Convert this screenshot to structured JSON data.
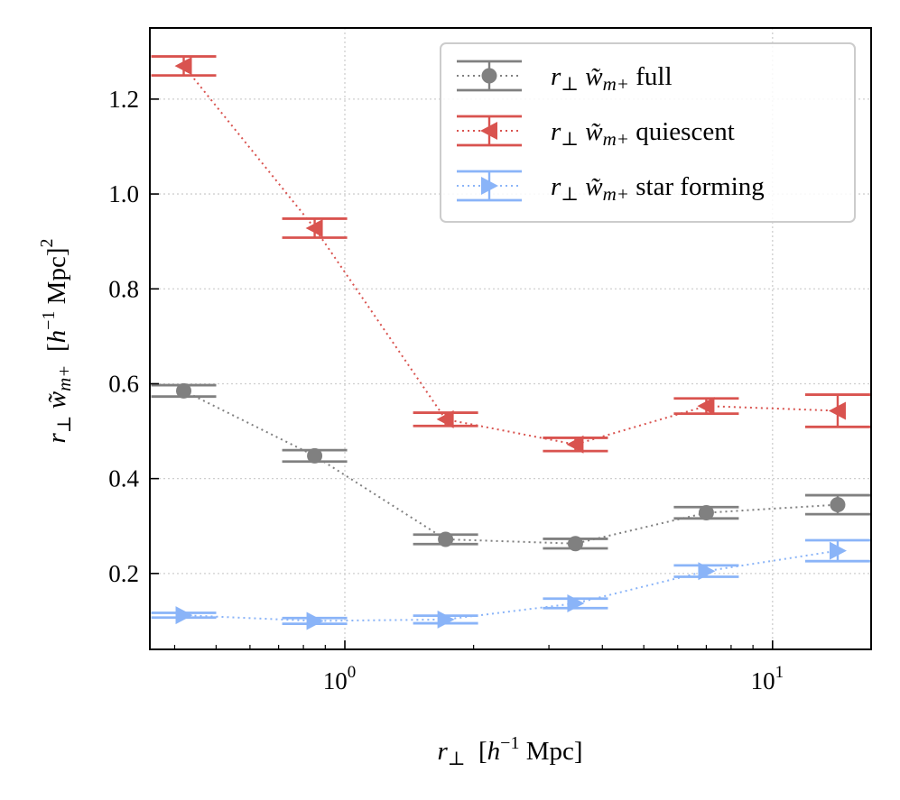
{
  "chart_data": {
    "type": "scatter",
    "xscale": "log",
    "xlim": [
      0.35,
      17
    ],
    "ylim": [
      0.04,
      1.35
    ],
    "grid": true,
    "xlabel": {
      "main": "r",
      "sub": "⊥",
      "unit_open": "[",
      "unit_h": "h",
      "unit_exp": "−1",
      "unit_rest": " Mpc]"
    },
    "ylabel": {
      "main": "r",
      "sub": "⊥",
      "w": "w̃",
      "wsub": "m+",
      "unit_open": "[",
      "unit_h": "h",
      "unit_exp": "−1",
      "unit_rest": " Mpc]",
      "unit_sq": "2"
    },
    "xticks": [
      {
        "value": 1,
        "base": "10",
        "exp": "0"
      },
      {
        "value": 10,
        "base": "10",
        "exp": "1"
      }
    ],
    "yticks": [
      {
        "value": 0.2,
        "label": "0.2"
      },
      {
        "value": 0.4,
        "label": "0.4"
      },
      {
        "value": 0.6,
        "label": "0.6"
      },
      {
        "value": 0.8,
        "label": "0.8"
      },
      {
        "value": 1.0,
        "label": "1.0"
      },
      {
        "value": 1.2,
        "label": "1.2"
      }
    ],
    "legend": {
      "position": "top-right"
    },
    "series": [
      {
        "name": "full",
        "label_main": "r",
        "label_sub": "⊥",
        "label_w": "w̃",
        "label_wsub": "m+",
        "label_text": " full",
        "color": "#808080",
        "marker": "circle",
        "x": [
          0.42,
          0.85,
          1.72,
          3.46,
          7.0,
          14.2
        ],
        "y": [
          0.585,
          0.448,
          0.272,
          0.263,
          0.328,
          0.345
        ],
        "yerr": [
          0.012,
          0.012,
          0.01,
          0.01,
          0.012,
          0.02
        ]
      },
      {
        "name": "quiescent",
        "label_main": "r",
        "label_sub": "⊥",
        "label_w": "w̃",
        "label_wsub": "m+",
        "label_text": " quiescent",
        "color": "#d9534f",
        "marker": "triangle-left",
        "x": [
          0.42,
          0.85,
          1.72,
          3.46,
          7.0,
          14.2
        ],
        "y": [
          1.27,
          0.928,
          0.525,
          0.472,
          0.553,
          0.543
        ],
        "yerr": [
          0.02,
          0.02,
          0.014,
          0.014,
          0.016,
          0.034
        ]
      },
      {
        "name": "star forming",
        "label_main": "r",
        "label_sub": "⊥",
        "label_w": "w̃",
        "label_wsub": "m+",
        "label_text": " star forming",
        "color": "#8ab4f8",
        "marker": "triangle-right",
        "x": [
          0.42,
          0.85,
          1.72,
          3.46,
          7.0,
          14.2
        ],
        "y": [
          0.112,
          0.1,
          0.103,
          0.137,
          0.205,
          0.248
        ],
        "yerr": [
          0.005,
          0.006,
          0.008,
          0.01,
          0.012,
          0.022
        ]
      }
    ]
  }
}
